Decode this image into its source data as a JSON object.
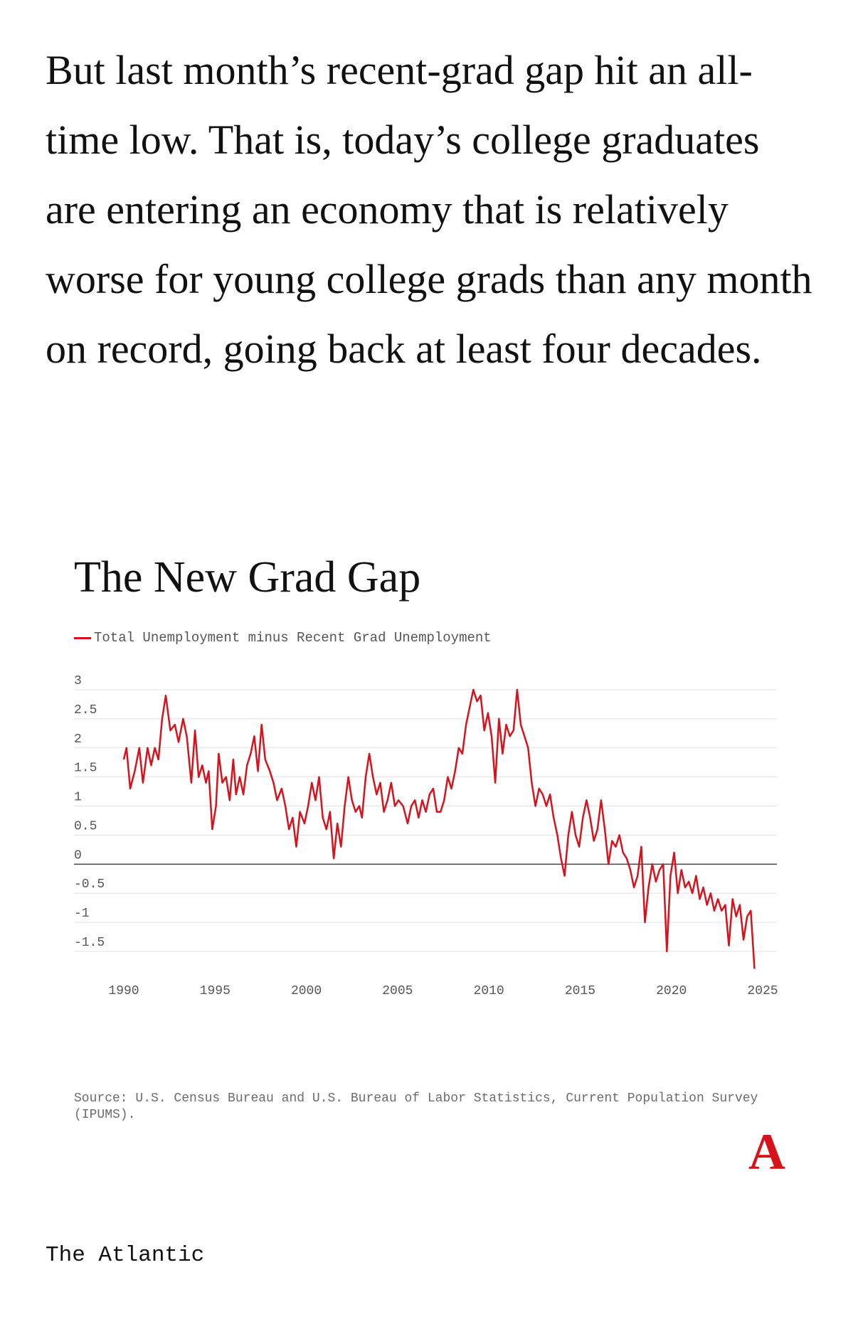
{
  "article": {
    "paragraph": "But last month’s recent-grad gap hit an all-time low. That is, today’s college graduates are entering an economy that is relatively worse for young college grads than any month on record, going back at least four decades."
  },
  "brand": {
    "mark": "A",
    "mark_color": "#d9111b",
    "footer_name": "The Atlantic"
  },
  "chart_data": {
    "type": "line",
    "title": "The New Grad Gap",
    "xlabel": "",
    "ylabel": "",
    "source": "Source: U.S. Census Bureau and U.S. Bureau of Labor Statistics, Current Population Survey (IPUMS).",
    "legend_placement": "top-left",
    "grid": true,
    "xlim": [
      1990,
      2025
    ],
    "ylim": [
      -1.5,
      3
    ],
    "x_ticks": [
      "1990",
      "1995",
      "2000",
      "2005",
      "2010",
      "2015",
      "2020",
      "2025"
    ],
    "y_ticks": [
      "3",
      "2.5",
      "2",
      "1.5",
      "1",
      "0.5",
      "0",
      "-0.5",
      "-1",
      "-1.5"
    ],
    "series": [
      {
        "name": "Total Unemployment minus Recent Grad Unemployment",
        "color": "#d9111b",
        "points": [
          [
            1990.0,
            1.8
          ],
          [
            1990.15,
            2.0
          ],
          [
            1990.35,
            1.3
          ],
          [
            1990.6,
            1.6
          ],
          [
            1990.85,
            2.0
          ],
          [
            1991.05,
            1.4
          ],
          [
            1991.3,
            2.0
          ],
          [
            1991.5,
            1.7
          ],
          [
            1991.7,
            2.0
          ],
          [
            1991.9,
            1.8
          ],
          [
            1992.1,
            2.5
          ],
          [
            1992.3,
            2.9
          ],
          [
            1992.55,
            2.3
          ],
          [
            1992.8,
            2.4
          ],
          [
            1993.0,
            2.1
          ],
          [
            1993.25,
            2.5
          ],
          [
            1993.45,
            2.2
          ],
          [
            1993.7,
            1.4
          ],
          [
            1993.9,
            2.3
          ],
          [
            1994.1,
            1.5
          ],
          [
            1994.3,
            1.7
          ],
          [
            1994.5,
            1.4
          ],
          [
            1994.65,
            1.6
          ],
          [
            1994.85,
            0.6
          ],
          [
            1995.05,
            1.0
          ],
          [
            1995.2,
            1.9
          ],
          [
            1995.4,
            1.4
          ],
          [
            1995.6,
            1.5
          ],
          [
            1995.8,
            1.1
          ],
          [
            1996.0,
            1.8
          ],
          [
            1996.15,
            1.2
          ],
          [
            1996.35,
            1.5
          ],
          [
            1996.55,
            1.2
          ],
          [
            1996.75,
            1.7
          ],
          [
            1996.95,
            1.9
          ],
          [
            1997.15,
            2.2
          ],
          [
            1997.35,
            1.6
          ],
          [
            1997.55,
            2.4
          ],
          [
            1997.75,
            1.8
          ],
          [
            1998.0,
            1.6
          ],
          [
            1998.2,
            1.4
          ],
          [
            1998.4,
            1.1
          ],
          [
            1998.65,
            1.3
          ],
          [
            1998.85,
            1.0
          ],
          [
            1999.05,
            0.6
          ],
          [
            1999.25,
            0.8
          ],
          [
            1999.45,
            0.3
          ],
          [
            1999.65,
            0.9
          ],
          [
            1999.9,
            0.7
          ],
          [
            2000.1,
            1.0
          ],
          [
            2000.3,
            1.4
          ],
          [
            2000.5,
            1.1
          ],
          [
            2000.7,
            1.5
          ],
          [
            2000.9,
            0.8
          ],
          [
            2001.1,
            0.6
          ],
          [
            2001.3,
            0.9
          ],
          [
            2001.5,
            0.1
          ],
          [
            2001.7,
            0.7
          ],
          [
            2001.9,
            0.3
          ],
          [
            2002.1,
            1.0
          ],
          [
            2002.3,
            1.5
          ],
          [
            2002.5,
            1.1
          ],
          [
            2002.7,
            0.9
          ],
          [
            2002.9,
            1.0
          ],
          [
            2003.05,
            0.8
          ],
          [
            2003.25,
            1.5
          ],
          [
            2003.45,
            1.9
          ],
          [
            2003.65,
            1.5
          ],
          [
            2003.85,
            1.2
          ],
          [
            2004.05,
            1.4
          ],
          [
            2004.25,
            0.9
          ],
          [
            2004.45,
            1.1
          ],
          [
            2004.65,
            1.4
          ],
          [
            2004.85,
            1.0
          ],
          [
            2005.05,
            1.1
          ],
          [
            2005.3,
            1.0
          ],
          [
            2005.55,
            0.7
          ],
          [
            2005.75,
            1.0
          ],
          [
            2005.95,
            1.1
          ],
          [
            2006.15,
            0.8
          ],
          [
            2006.35,
            1.1
          ],
          [
            2006.55,
            0.9
          ],
          [
            2006.75,
            1.2
          ],
          [
            2006.95,
            1.3
          ],
          [
            2007.15,
            0.9
          ],
          [
            2007.35,
            0.9
          ],
          [
            2007.55,
            1.1
          ],
          [
            2007.75,
            1.5
          ],
          [
            2007.95,
            1.3
          ],
          [
            2008.15,
            1.6
          ],
          [
            2008.35,
            2.0
          ],
          [
            2008.55,
            1.9
          ],
          [
            2008.75,
            2.4
          ],
          [
            2008.95,
            2.7
          ],
          [
            2009.15,
            3.0
          ],
          [
            2009.35,
            2.8
          ],
          [
            2009.55,
            2.9
          ],
          [
            2009.75,
            2.3
          ],
          [
            2009.95,
            2.6
          ],
          [
            2010.15,
            2.2
          ],
          [
            2010.35,
            1.4
          ],
          [
            2010.55,
            2.5
          ],
          [
            2010.75,
            1.9
          ],
          [
            2010.95,
            2.4
          ],
          [
            2011.15,
            2.2
          ],
          [
            2011.35,
            2.3
          ],
          [
            2011.55,
            3.0
          ],
          [
            2011.75,
            2.4
          ],
          [
            2011.95,
            2.2
          ],
          [
            2012.15,
            2.0
          ],
          [
            2012.35,
            1.4
          ],
          [
            2012.55,
            1.0
          ],
          [
            2012.75,
            1.3
          ],
          [
            2012.95,
            1.2
          ],
          [
            2013.15,
            1.0
          ],
          [
            2013.35,
            1.2
          ],
          [
            2013.55,
            0.8
          ],
          [
            2013.75,
            0.5
          ],
          [
            2013.95,
            0.1
          ],
          [
            2014.15,
            -0.2
          ],
          [
            2014.35,
            0.5
          ],
          [
            2014.55,
            0.9
          ],
          [
            2014.75,
            0.5
          ],
          [
            2014.95,
            0.3
          ],
          [
            2015.15,
            0.8
          ],
          [
            2015.35,
            1.1
          ],
          [
            2015.55,
            0.8
          ],
          [
            2015.75,
            0.4
          ],
          [
            2015.95,
            0.6
          ],
          [
            2016.15,
            1.1
          ],
          [
            2016.35,
            0.6
          ],
          [
            2016.55,
            0.0
          ],
          [
            2016.75,
            0.4
          ],
          [
            2016.95,
            0.3
          ],
          [
            2017.15,
            0.5
          ],
          [
            2017.35,
            0.2
          ],
          [
            2017.55,
            0.1
          ],
          [
            2017.75,
            -0.1
          ],
          [
            2017.95,
            -0.4
          ],
          [
            2018.15,
            -0.2
          ],
          [
            2018.35,
            0.3
          ],
          [
            2018.55,
            -1.0
          ],
          [
            2018.75,
            -0.4
          ],
          [
            2018.95,
            0.0
          ],
          [
            2019.15,
            -0.3
          ],
          [
            2019.35,
            -0.1
          ],
          [
            2019.55,
            0.0
          ],
          [
            2019.75,
            -1.5
          ],
          [
            2019.95,
            -0.2
          ],
          [
            2020.15,
            0.2
          ],
          [
            2020.35,
            -0.5
          ],
          [
            2020.55,
            -0.1
          ],
          [
            2020.75,
            -0.4
          ],
          [
            2020.95,
            -0.3
          ],
          [
            2021.15,
            -0.5
          ],
          [
            2021.35,
            -0.2
          ],
          [
            2021.55,
            -0.6
          ],
          [
            2021.75,
            -0.4
          ],
          [
            2021.95,
            -0.7
          ],
          [
            2022.15,
            -0.5
          ],
          [
            2022.35,
            -0.8
          ],
          [
            2022.55,
            -0.6
          ],
          [
            2022.75,
            -0.8
          ],
          [
            2022.95,
            -0.7
          ],
          [
            2023.15,
            -1.4
          ],
          [
            2023.35,
            -0.6
          ],
          [
            2023.55,
            -0.9
          ],
          [
            2023.75,
            -0.7
          ],
          [
            2023.95,
            -1.3
          ],
          [
            2024.15,
            -0.9
          ],
          [
            2024.35,
            -0.8
          ],
          [
            2024.55,
            -1.8
          ]
        ]
      }
    ]
  }
}
